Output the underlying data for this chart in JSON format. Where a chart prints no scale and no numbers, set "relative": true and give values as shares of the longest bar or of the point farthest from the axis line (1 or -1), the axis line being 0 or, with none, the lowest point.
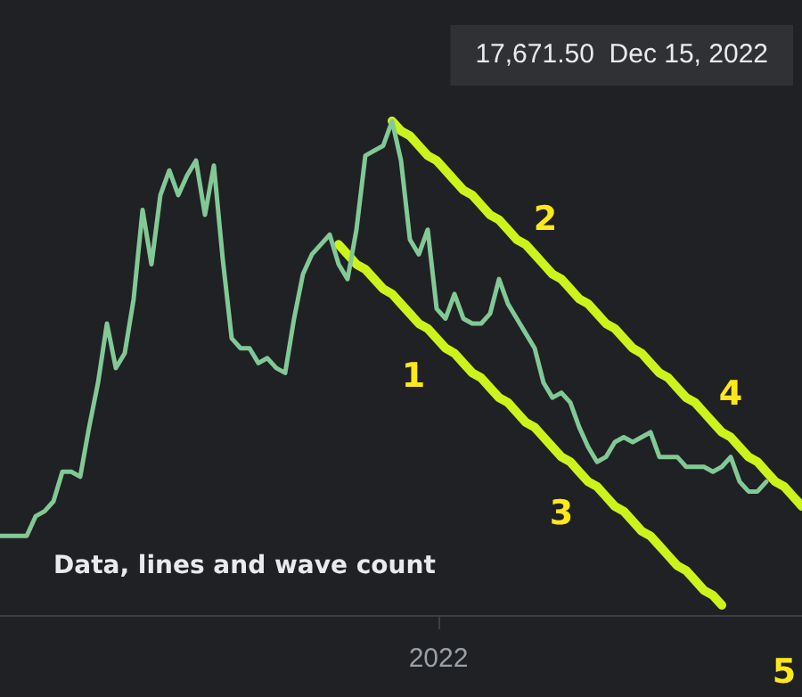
{
  "chart_data": {
    "type": "line",
    "relative": true,
    "legend": false,
    "marker": "none",
    "line_style": "solid",
    "categories": [
      null,
      null,
      null,
      null,
      null,
      null,
      null,
      null,
      null,
      null,
      null,
      null,
      null,
      null,
      null,
      null,
      null,
      null,
      null,
      null,
      null,
      null,
      null,
      null,
      null,
      null,
      null,
      null,
      null,
      null,
      null,
      null,
      null,
      null,
      null,
      null,
      null,
      null,
      null,
      null,
      null,
      null,
      null,
      null,
      null,
      null,
      null,
      null,
      null,
      null,
      null,
      null,
      null,
      null,
      null,
      null,
      null,
      null,
      null,
      null,
      null,
      null,
      null,
      null,
      null,
      null,
      null,
      null,
      null,
      null,
      null,
      null,
      null,
      null,
      null,
      null,
      null,
      null,
      null,
      null,
      null,
      null,
      null,
      null,
      null,
      null,
      null,
      null,
      null,
      null,
      null
    ],
    "series": [
      {
        "color": "#81c995",
        "values": [
          0.16,
          0.16,
          0.16,
          0.16,
          0.2,
          0.21,
          0.23,
          0.29,
          0.29,
          0.28,
          0.38,
          0.47,
          0.59,
          0.5,
          0.53,
          0.64,
          0.82,
          0.71,
          0.85,
          0.9,
          0.85,
          0.89,
          0.92,
          0.81,
          0.91,
          0.72,
          0.56,
          0.54,
          0.54,
          0.51,
          0.52,
          0.5,
          0.49,
          0.6,
          0.69,
          0.73,
          0.75,
          0.77,
          0.71,
          0.68,
          0.78,
          0.93,
          0.94,
          0.95,
          1,
          0.92,
          0.76,
          0.73,
          0.78,
          0.62,
          0.6,
          0.65,
          0.6,
          0.59,
          0.59,
          0.61,
          0.68,
          0.63,
          0.6,
          0.57,
          0.54,
          0.47,
          0.44,
          0.45,
          0.43,
          0.38,
          0.34,
          0.31,
          0.32,
          0.35,
          0.36,
          0.35,
          0.36,
          0.37,
          0.32,
          0.32,
          0.32,
          0.3,
          0.3,
          0.3,
          0.29,
          0.3,
          0.32,
          0.27,
          0.25,
          0.25,
          0.27,
          null,
          null,
          null,
          null
        ]
      },
      {
        "type": "line",
        "color": "#ccf31b",
        "values": [
          null,
          null,
          null,
          null,
          null,
          null,
          null,
          null,
          null,
          null,
          null,
          null,
          null,
          null,
          null,
          null,
          null,
          null,
          null,
          null,
          null,
          null,
          null,
          null,
          null,
          null,
          null,
          null,
          null,
          null,
          null,
          null,
          null,
          null,
          null,
          null,
          null,
          null,
          null,
          null,
          null,
          null,
          null,
          null,
          1.0,
          0.98,
          0.97,
          0.95,
          0.93,
          0.92,
          0.9,
          0.88,
          0.86,
          0.85,
          0.83,
          0.81,
          0.8,
          0.78,
          0.76,
          0.75,
          0.73,
          0.71,
          0.69,
          0.68,
          0.66,
          0.64,
          0.63,
          0.61,
          0.59,
          0.58,
          0.56,
          0.54,
          0.53,
          0.51,
          0.49,
          0.48,
          0.46,
          0.44,
          0.43,
          0.41,
          0.39,
          0.37,
          0.36,
          0.34,
          0.32,
          0.31,
          0.29,
          0.27,
          0.26,
          0.24,
          0.22
        ]
      },
      {
        "type": "line",
        "color": "#ccf31b",
        "values": [
          null,
          null,
          null,
          null,
          null,
          null,
          null,
          null,
          null,
          null,
          null,
          null,
          null,
          null,
          null,
          null,
          null,
          null,
          null,
          null,
          null,
          null,
          null,
          null,
          null,
          null,
          null,
          null,
          null,
          null,
          null,
          null,
          null,
          null,
          null,
          null,
          null,
          null,
          0.75,
          0.73,
          0.71,
          0.7,
          0.68,
          0.66,
          0.65,
          0.63,
          0.61,
          0.59,
          0.58,
          0.56,
          0.54,
          0.53,
          0.51,
          0.49,
          0.48,
          0.46,
          0.44,
          0.43,
          0.41,
          0.39,
          0.38,
          0.36,
          0.34,
          0.32,
          0.31,
          0.29,
          0.27,
          0.26,
          0.24,
          0.22,
          0.21,
          0.19,
          0.17,
          0.16,
          0.14,
          0.12,
          0.1,
          0.09,
          0.07,
          0.05,
          0.04,
          0.02,
          null,
          null,
          null,
          null,
          null,
          null,
          null,
          null,
          null
        ]
      }
    ],
    "annotations": [
      "17,671.50  Dec 15, 2022",
      "1",
      "2",
      "3",
      "4",
      "5",
      "Data, lines and wave count",
      "2022"
    ]
  }
}
